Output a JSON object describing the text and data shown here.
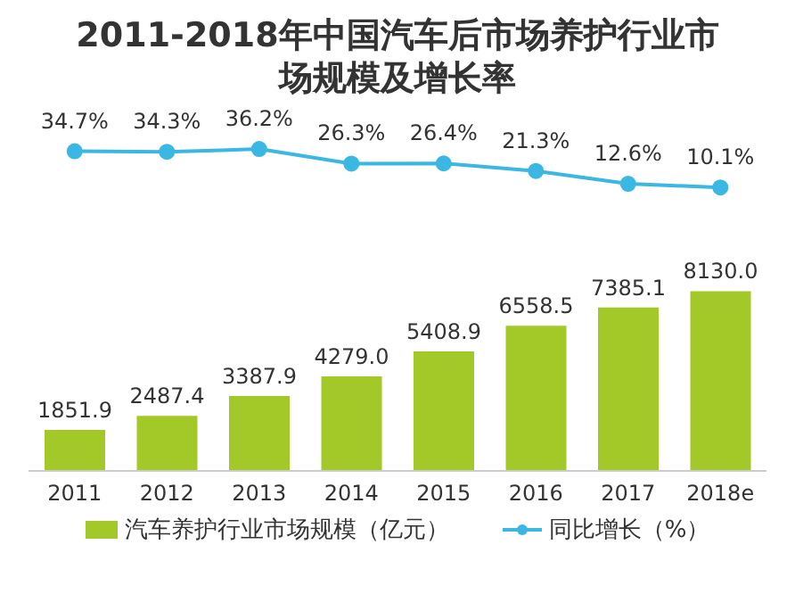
{
  "chart_data": [
    {
      "type": "line",
      "title": "2011-2018年中国汽车后市场养护行业市场规模及增长率",
      "categories": [
        null,
        null,
        null,
        null,
        null,
        null,
        null,
        null
      ],
      "series": [
        {
          "name": "同比增长（%）",
          "color": "#3bb7e3",
          "marker": "circle",
          "values": [
            34.7,
            34.3,
            36.2,
            26.3,
            26.4,
            21.3,
            12.6,
            10.1
          ],
          "value_labels": [
            "34.7%",
            "34.3%",
            "36.2%",
            "26.3%",
            "26.4%",
            "21.3%",
            "12.6%",
            "10.1%"
          ]
        }
      ],
      "data_labels": true,
      "legend": "bottom",
      "tick_labels": false
    },
    {
      "type": "bar",
      "categories": [
        "2011",
        "2012",
        "2013",
        "2014",
        "2015",
        "2016",
        "2017",
        "2018e"
      ],
      "series": [
        {
          "name": "汽车养护行业市场规模（亿元）",
          "color": "#a3c928",
          "values": [
            1851.9,
            2487.4,
            3387.9,
            4279.0,
            5408.9,
            6558.5,
            7385.1,
            8130.0
          ],
          "value_labels": [
            "1851.9",
            "2487.4",
            "3387.9",
            "4279.0",
            "5408.9",
            "6558.5",
            "7385.1",
            "8130.0"
          ]
        }
      ],
      "data_labels": true,
      "legend": "bottom",
      "tick_labels": "x"
    }
  ]
}
